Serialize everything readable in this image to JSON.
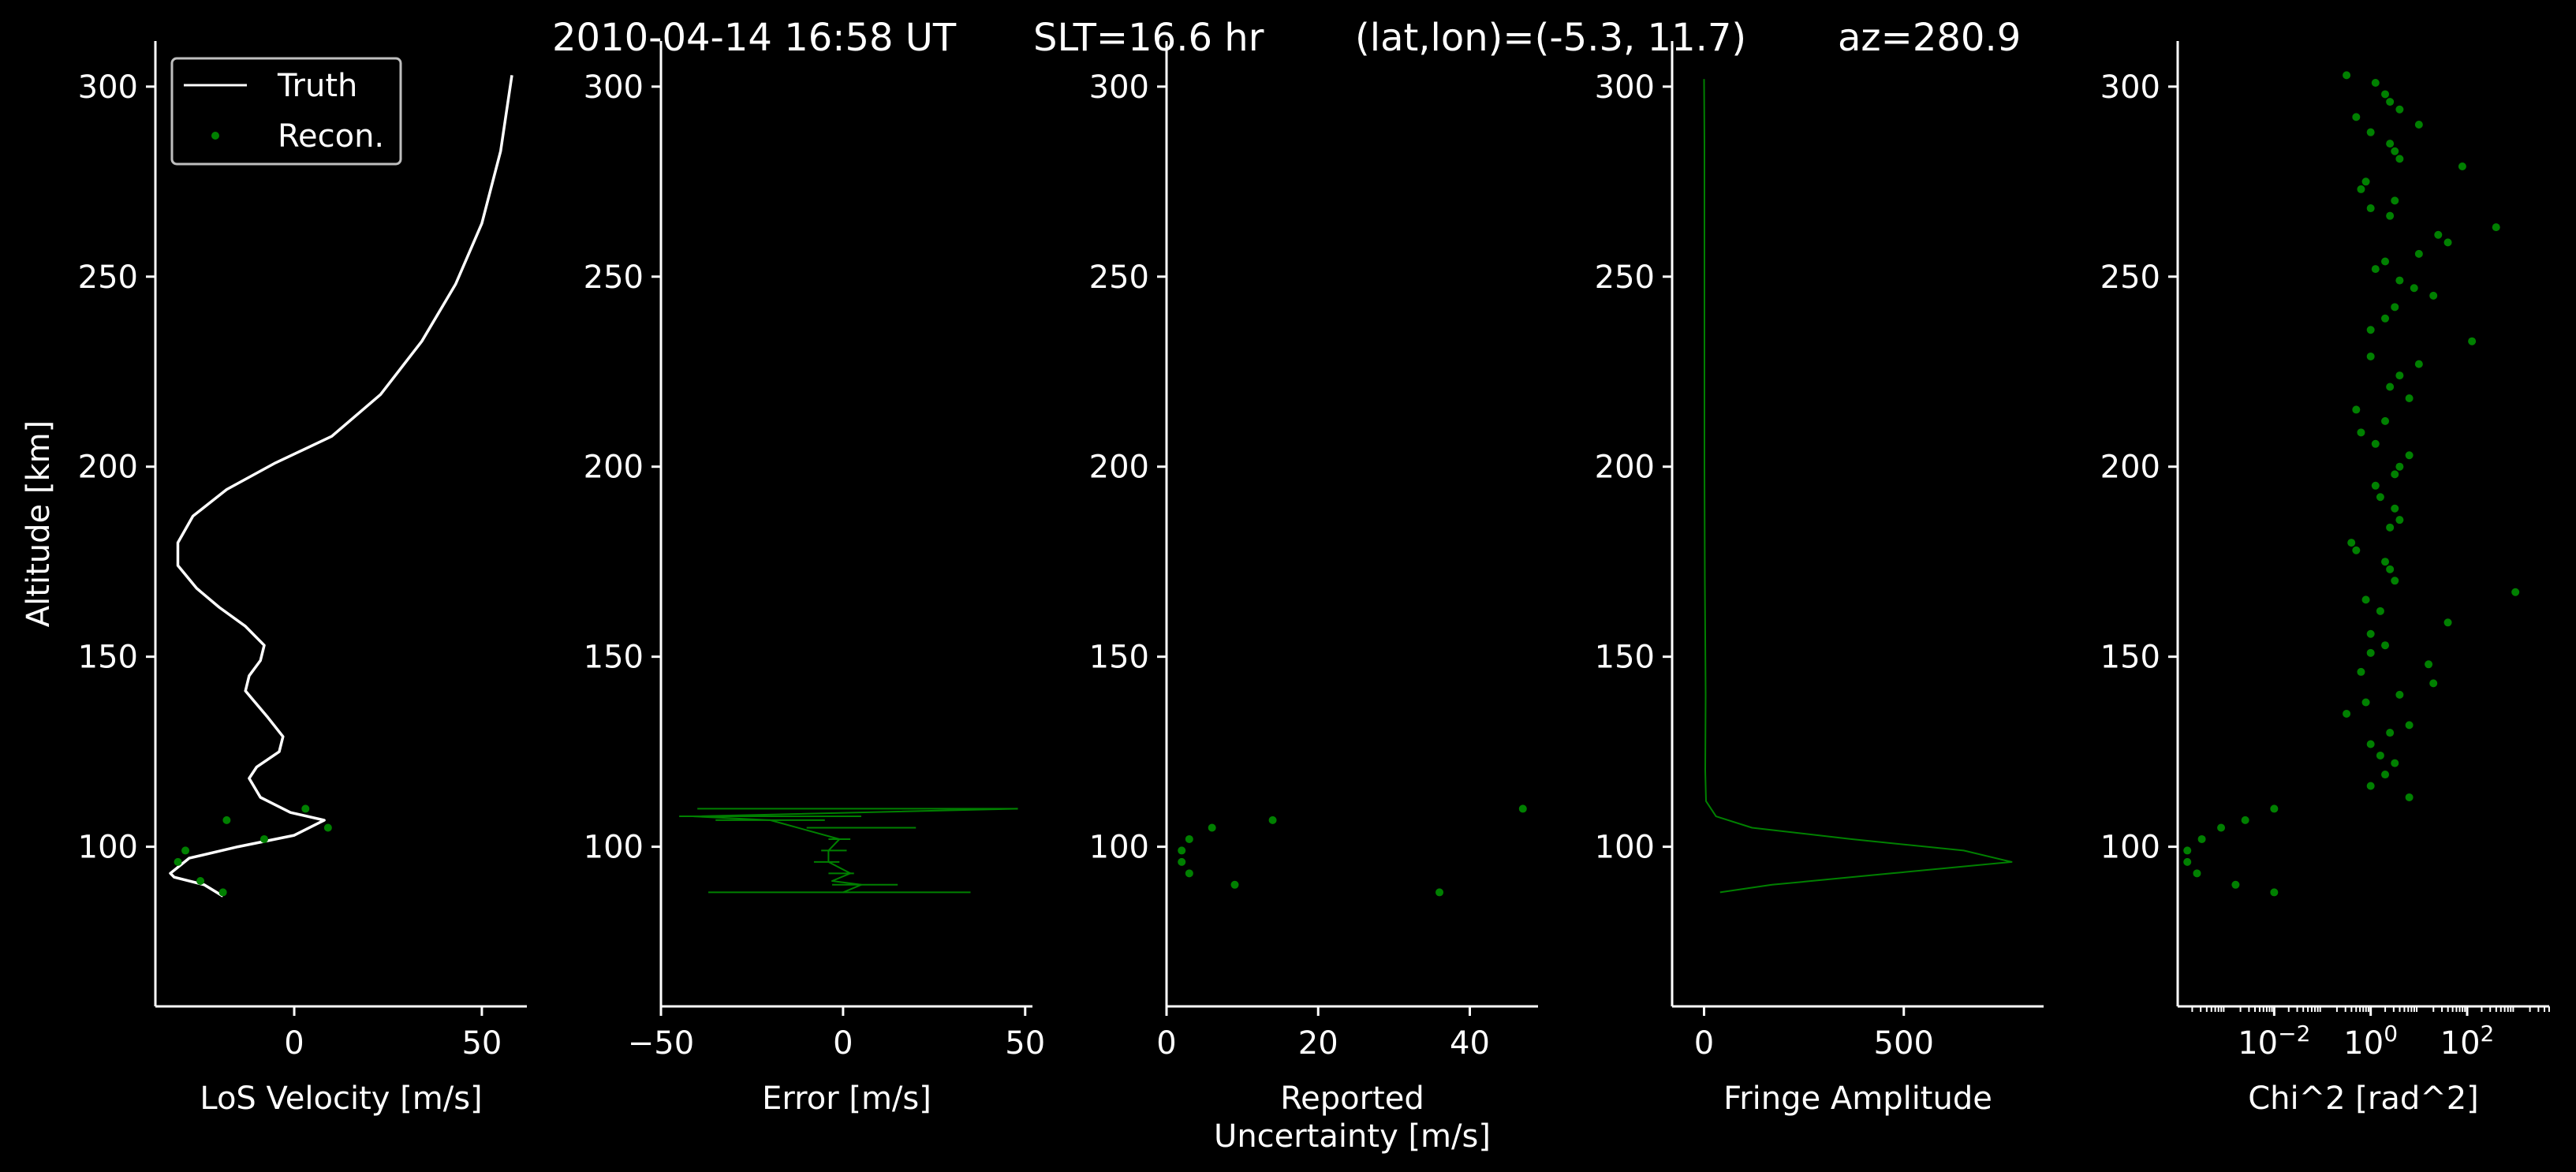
{
  "title_parts": {
    "datetime": "2010-04-14 16:58 UT",
    "slt": "SLT=16.6 hr",
    "latlon": "(lat,lon)=(-5.3, 11.7)",
    "az": "az=280.9"
  },
  "colors": {
    "background": "#000000",
    "axis": "#ffffff",
    "truth": "#ffffff",
    "recon": "#008000"
  },
  "chart_data": [
    {
      "type": "line",
      "xlabel": "LoS Velocity [m/s]",
      "ylabel": "Altitude [km]",
      "xlim": [
        -37,
        62
      ],
      "ylim": [
        58,
        312
      ],
      "xticks": [
        0,
        50
      ],
      "xtick_labels": [
        "0",
        "50"
      ],
      "yticks": [
        100,
        150,
        200,
        250,
        300
      ],
      "ytick_labels": [
        "100",
        "150",
        "200",
        "250",
        "300"
      ],
      "legend": {
        "placement": "upper-left",
        "entries": [
          {
            "label": "Truth",
            "style": "line"
          },
          {
            "label": "Recon.",
            "style": "dot"
          }
        ]
      },
      "series": [
        {
          "name": "Truth",
          "style": "line",
          "points": [
            [
              -19,
              87
            ],
            [
              -24,
              90
            ],
            [
              -32,
              92
            ],
            [
              -33,
              93
            ],
            [
              -28,
              97
            ],
            [
              -15,
              100
            ],
            [
              0,
              103
            ],
            [
              8,
              107
            ],
            [
              -1,
              109
            ],
            [
              -9,
              113
            ],
            [
              -12,
              118
            ],
            [
              -10,
              121
            ],
            [
              -4,
              125
            ],
            [
              -3,
              129
            ],
            [
              -7,
              134
            ],
            [
              -13,
              141
            ],
            [
              -12,
              145
            ],
            [
              -9,
              149
            ],
            [
              -8,
              153
            ],
            [
              -13,
              158
            ],
            [
              -20,
              163
            ],
            [
              -26,
              168
            ],
            [
              -31,
              174
            ],
            [
              -31,
              180
            ],
            [
              -27,
              187
            ],
            [
              -18,
              194
            ],
            [
              -5,
              201
            ],
            [
              10,
              208
            ],
            [
              23,
              219
            ],
            [
              34,
              233
            ],
            [
              43,
              248
            ],
            [
              50,
              264
            ],
            [
              55,
              283
            ],
            [
              58,
              303
            ]
          ]
        },
        {
          "name": "Recon.",
          "style": "dot",
          "points": [
            [
              -19,
              88
            ],
            [
              -25,
              91
            ],
            [
              -31,
              96
            ],
            [
              -29,
              99
            ],
            [
              -8,
              102
            ],
            [
              9,
              105
            ],
            [
              3,
              110
            ],
            [
              -18,
              107
            ]
          ]
        }
      ]
    },
    {
      "type": "line",
      "xlabel": "Error [m/s]",
      "xlim": [
        -50,
        52
      ],
      "ylim": [
        58,
        312
      ],
      "xticks": [
        -50,
        0,
        50
      ],
      "xtick_labels": [
        "−50",
        "0",
        "50"
      ],
      "yticks": [
        100,
        150,
        200,
        250,
        300
      ],
      "ytick_labels": [
        "100",
        "150",
        "200",
        "250",
        "300"
      ],
      "series": [
        {
          "style": "thin-line",
          "points": [
            [
              0,
              88
            ],
            [
              5,
              90
            ],
            [
              -3,
              91
            ],
            [
              2,
              93
            ],
            [
              -4,
              96
            ],
            [
              -4,
              99
            ],
            [
              -1,
              102
            ],
            [
              -20,
              107
            ],
            [
              -41,
              108
            ],
            [
              48,
              110
            ]
          ]
        },
        {
          "style": "errorbar",
          "bars": [
            [
              -37,
              35,
              88
            ],
            [
              -3,
              15,
              90
            ],
            [
              -4,
              3,
              93
            ],
            [
              -8,
              -1,
              96
            ],
            [
              -6,
              1,
              99
            ],
            [
              -4,
              2,
              102
            ],
            [
              -10,
              20,
              105
            ],
            [
              -35,
              -5,
              107
            ],
            [
              -45,
              5,
              108
            ],
            [
              -40,
              48,
              110
            ]
          ]
        }
      ]
    },
    {
      "type": "scatter",
      "xlabel_lines": [
        "Reported",
        "Uncertainty [m/s]"
      ],
      "xlim": [
        0,
        49
      ],
      "ylim": [
        58,
        312
      ],
      "xticks": [
        0,
        20,
        40
      ],
      "xtick_labels": [
        "0",
        "20",
        "40"
      ],
      "yticks": [
        100,
        150,
        200,
        250,
        300
      ],
      "ytick_labels": [
        "100",
        "150",
        "200",
        "250",
        "300"
      ],
      "series": [
        {
          "style": "dot",
          "points": [
            [
              36,
              88
            ],
            [
              9,
              90
            ],
            [
              3,
              93
            ],
            [
              2,
              96
            ],
            [
              2,
              99
            ],
            [
              3,
              102
            ],
            [
              6,
              105
            ],
            [
              14,
              107
            ],
            [
              47,
              110
            ]
          ]
        }
      ]
    },
    {
      "type": "line",
      "xlabel": "Fringe Amplitude",
      "xlim": [
        -80,
        850
      ],
      "ylim": [
        58,
        312
      ],
      "xticks": [
        0,
        500
      ],
      "xtick_labels": [
        "0",
        "500"
      ],
      "yticks": [
        100,
        150,
        200,
        250,
        300
      ],
      "ytick_labels": [
        "100",
        "150",
        "200",
        "250",
        "300"
      ],
      "series": [
        {
          "style": "thin-line",
          "points": [
            [
              40,
              88
            ],
            [
              170,
              90
            ],
            [
              470,
              93
            ],
            [
              770,
              96
            ],
            [
              650,
              99
            ],
            [
              370,
              102
            ],
            [
              120,
              105
            ],
            [
              30,
              108
            ],
            [
              5,
              112
            ],
            [
              3,
              120
            ],
            [
              4,
              140
            ],
            [
              2,
              170
            ],
            [
              1,
              200
            ],
            [
              1,
              230
            ],
            [
              1,
              260
            ],
            [
              1,
              285
            ],
            [
              0,
              302
            ]
          ]
        }
      ]
    },
    {
      "type": "scatter",
      "xlabel": "Chi^2 [rad^2]",
      "xscale": "log",
      "xlim_log10": [
        -4.0,
        3.7
      ],
      "ylim": [
        58,
        312
      ],
      "xticks_log10": [
        -2,
        0,
        2
      ],
      "xtick_labels": [
        "10^-2",
        "10^0",
        "10^2"
      ],
      "yticks": [
        100,
        150,
        200,
        250,
        300
      ],
      "ytick_labels": [
        "100",
        "150",
        "200",
        "250",
        "300"
      ],
      "series": [
        {
          "style": "dot",
          "points_log10": [
            [
              -2.0,
              88
            ],
            [
              -2.8,
              90
            ],
            [
              -3.6,
              93
            ],
            [
              -3.8,
              96
            ],
            [
              -3.8,
              99
            ],
            [
              -3.5,
              102
            ],
            [
              -3.1,
              105
            ],
            [
              -2.6,
              107
            ],
            [
              -2.0,
              110
            ],
            [
              0.8,
              113
            ],
            [
              0.0,
              116
            ],
            [
              0.3,
              119
            ],
            [
              0.5,
              122
            ],
            [
              0.2,
              124
            ],
            [
              0.0,
              127
            ],
            [
              0.4,
              130
            ],
            [
              0.8,
              132
            ],
            [
              -0.5,
              135
            ],
            [
              -0.1,
              138
            ],
            [
              0.6,
              140
            ],
            [
              1.3,
              143
            ],
            [
              -0.2,
              146
            ],
            [
              1.2,
              148
            ],
            [
              0.0,
              151
            ],
            [
              0.3,
              153
            ],
            [
              0.0,
              156
            ],
            [
              1.6,
              159
            ],
            [
              0.2,
              162
            ],
            [
              -0.1,
              165
            ],
            [
              3.0,
              167
            ],
            [
              0.5,
              170
            ],
            [
              0.4,
              173
            ],
            [
              0.3,
              175
            ],
            [
              -0.3,
              178
            ],
            [
              -0.4,
              180
            ],
            [
              0.4,
              184
            ],
            [
              0.6,
              186
            ],
            [
              0.5,
              189
            ],
            [
              0.2,
              192
            ],
            [
              0.1,
              195
            ],
            [
              0.5,
              198
            ],
            [
              0.6,
              200
            ],
            [
              0.8,
              203
            ],
            [
              0.1,
              206
            ],
            [
              -0.2,
              209
            ],
            [
              0.3,
              212
            ],
            [
              -0.3,
              215
            ],
            [
              0.8,
              218
            ],
            [
              0.4,
              221
            ],
            [
              0.6,
              224
            ],
            [
              1.0,
              227
            ],
            [
              0.0,
              229
            ],
            [
              2.1,
              233
            ],
            [
              0.0,
              236
            ],
            [
              0.3,
              239
            ],
            [
              0.5,
              242
            ],
            [
              1.3,
              245
            ],
            [
              0.9,
              247
            ],
            [
              0.6,
              249
            ],
            [
              0.1,
              252
            ],
            [
              0.3,
              254
            ],
            [
              1.0,
              256
            ],
            [
              1.6,
              259
            ],
            [
              1.4,
              261
            ],
            [
              2.6,
              263
            ],
            [
              0.4,
              266
            ],
            [
              0.0,
              268
            ],
            [
              0.5,
              270
            ],
            [
              -0.2,
              273
            ],
            [
              -0.1,
              275
            ],
            [
              1.9,
              279
            ],
            [
              0.6,
              281
            ],
            [
              0.5,
              283
            ],
            [
              0.4,
              285
            ],
            [
              0.0,
              288
            ],
            [
              1.0,
              290
            ],
            [
              -0.3,
              292
            ],
            [
              0.6,
              294
            ],
            [
              0.4,
              296
            ],
            [
              0.3,
              298
            ],
            [
              0.1,
              301
            ],
            [
              -0.5,
              303
            ]
          ]
        }
      ]
    }
  ]
}
